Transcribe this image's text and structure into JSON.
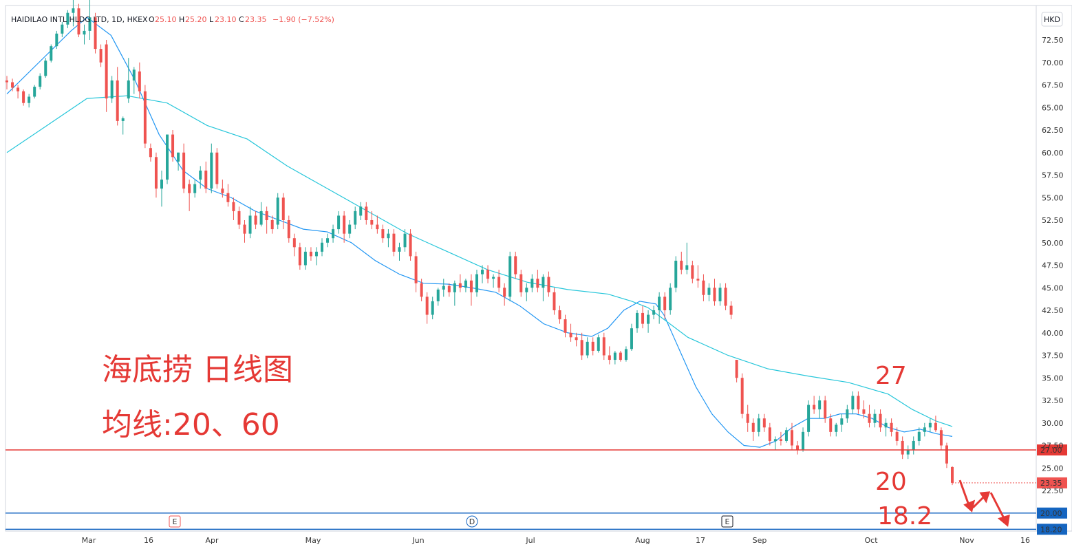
{
  "header": {
    "symbol": "HAIDILAO INTL HLDG LTD, 1D, HKEX",
    "o_label": "O",
    "o_value": "25.10",
    "h_label": "H",
    "h_value": "25.20",
    "l_label": "L",
    "l_value": "23.10",
    "c_label": "C",
    "c_value": "23.35",
    "change": "−1.90 (−7.52%)"
  },
  "currency": "HKD",
  "annotations": {
    "title": "海底捞 日线图",
    "ma_label": "均线:20、60",
    "level_27": "27",
    "level_20": "20",
    "level_18": "18.2"
  },
  "event_markers": [
    {
      "label": "E",
      "x_label": "Mar 24"
    },
    {
      "label": "D",
      "x_label": "Jun 22"
    },
    {
      "label": "E",
      "x_label": "Aug 24"
    }
  ],
  "colors": {
    "up": "#26a69a",
    "down": "#ef5350",
    "ma20": "#2196f3",
    "ma60": "#26c6da",
    "resistance": "#e53935",
    "support": "#1565c0",
    "annotation": "#e53935"
  },
  "chart_data": {
    "type": "candlestick",
    "symbol": "HAIDILAO INTL HLDG LTD",
    "timeframe": "1D",
    "exchange": "HKEX",
    "ylim": [
      17.5,
      75
    ],
    "y_ticks": [
      "72.50",
      "70.00",
      "67.50",
      "65.00",
      "62.50",
      "60.00",
      "57.50",
      "55.00",
      "52.50",
      "50.00",
      "47.50",
      "45.00",
      "42.50",
      "40.00",
      "37.50",
      "35.00",
      "32.50",
      "30.00",
      "27.50",
      "25.00",
      "22.50"
    ],
    "x_ticks": [
      "Mar",
      "16",
      "Apr",
      "May",
      "Jun",
      "Jul",
      "Aug",
      "17",
      "Sep",
      "Oct",
      "Nov",
      "16"
    ],
    "horizontal_lines": [
      {
        "value": 27.0,
        "label": "27.00",
        "color": "#e53935"
      },
      {
        "value": 20.0,
        "label": "20.00",
        "color": "#1565c0"
      },
      {
        "value": 18.2,
        "label": "18.20",
        "color": "#1565c0"
      }
    ],
    "last_price": {
      "value": 23.35,
      "label": "23.35"
    },
    "moving_averages": [
      {
        "name": "MA20",
        "period": 20,
        "color": "#2196f3",
        "points": [
          [
            0,
            66.5
          ],
          [
            8,
            70
          ],
          [
            16,
            73.5
          ],
          [
            20,
            75
          ],
          [
            26,
            73
          ],
          [
            32,
            68
          ],
          [
            38,
            62
          ],
          [
            44,
            58
          ],
          [
            50,
            56
          ],
          [
            56,
            55
          ],
          [
            62,
            53.5
          ],
          [
            68,
            52.5
          ],
          [
            74,
            51.5
          ],
          [
            80,
            51.2
          ],
          [
            86,
            50
          ],
          [
            92,
            48
          ],
          [
            98,
            46.5
          ],
          [
            104,
            45.5
          ],
          [
            110,
            45.4
          ],
          [
            116,
            45
          ],
          [
            122,
            44.5
          ],
          [
            128,
            43
          ],
          [
            134,
            41
          ],
          [
            140,
            40
          ],
          [
            146,
            39.6
          ],
          [
            150,
            40.5
          ],
          [
            154,
            42.5
          ],
          [
            158,
            43.5
          ],
          [
            162,
            43.2
          ],
          [
            164,
            42
          ],
          [
            168,
            38
          ],
          [
            172,
            34
          ],
          [
            176,
            31
          ],
          [
            180,
            29
          ],
          [
            184,
            27.5
          ],
          [
            188,
            27.3
          ],
          [
            192,
            28
          ],
          [
            196,
            29.5
          ],
          [
            200,
            30.5
          ],
          [
            204,
            30.5
          ],
          [
            208,
            31
          ],
          [
            212,
            31
          ],
          [
            216,
            30.5
          ],
          [
            220,
            29.5
          ],
          [
            224,
            29
          ],
          [
            228,
            29.3
          ],
          [
            232,
            28.8
          ],
          [
            236,
            28.5
          ]
        ]
      },
      {
        "name": "MA60",
        "period": 60,
        "color": "#26c6da",
        "points": [
          [
            0,
            60
          ],
          [
            10,
            63
          ],
          [
            20,
            66
          ],
          [
            30,
            66.3
          ],
          [
            40,
            65.5
          ],
          [
            50,
            63
          ],
          [
            60,
            61.5
          ],
          [
            70,
            58.5
          ],
          [
            80,
            56
          ],
          [
            90,
            53.5
          ],
          [
            100,
            51
          ],
          [
            110,
            49
          ],
          [
            120,
            47
          ],
          [
            130,
            45.6
          ],
          [
            140,
            44.8
          ],
          [
            150,
            44.3
          ],
          [
            156,
            43.5
          ],
          [
            160,
            42.8
          ],
          [
            164,
            41.5
          ],
          [
            170,
            39.5
          ],
          [
            180,
            37.5
          ],
          [
            190,
            36
          ],
          [
            200,
            35.2
          ],
          [
            210,
            34.5
          ],
          [
            220,
            33.2
          ],
          [
            226,
            31.5
          ],
          [
            232,
            30.2
          ],
          [
            236,
            29.6
          ]
        ]
      }
    ],
    "candles": [
      [
        0,
        68,
        68.5,
        67,
        67.8
      ],
      [
        1,
        67.8,
        68.2,
        66.8,
        67.2
      ],
      [
        2,
        67.2,
        67.5,
        66,
        66.8
      ],
      [
        3,
        66.8,
        67,
        65.2,
        65.5
      ],
      [
        4,
        65.5,
        66.5,
        65,
        66.2
      ],
      [
        5,
        66.2,
        67.5,
        66,
        67.3
      ],
      [
        6,
        67.3,
        68.8,
        67,
        68.5
      ],
      [
        7,
        68.5,
        70.5,
        68.3,
        70.2
      ],
      [
        8,
        70.2,
        72,
        70,
        71.8
      ],
      [
        9,
        71.8,
        73.5,
        71.5,
        73.2
      ],
      [
        10,
        73.2,
        74.5,
        72.8,
        74.2
      ],
      [
        11,
        74.2,
        75.8,
        73.8,
        75.5
      ],
      [
        12,
        75.5,
        77,
        74,
        76
      ],
      [
        13,
        76,
        76.5,
        72.8,
        73.1
      ],
      [
        14,
        73.1,
        74.2,
        72,
        73.5
      ],
      [
        15,
        73.5,
        77,
        72.5,
        75
      ],
      [
        16,
        75,
        75.5,
        71,
        71.5
      ],
      [
        17,
        71.5,
        72,
        69.5,
        70
      ],
      [
        18,
        72,
        72.5,
        64.5,
        66
      ],
      [
        19,
        66,
        68.5,
        65.5,
        68
      ],
      [
        20,
        68,
        69.5,
        63,
        63.5
      ],
      [
        21,
        63.5,
        64,
        62,
        63.8
      ],
      [
        22,
        66,
        70.5,
        65.5,
        68
      ],
      [
        23,
        68,
        69.5,
        66.5,
        69.2
      ],
      [
        24,
        69,
        70,
        66,
        66.8
      ],
      [
        25,
        66.8,
        67.5,
        60.5,
        61
      ],
      [
        26,
        60.5,
        61,
        59,
        59.5
      ],
      [
        27,
        59.5,
        60,
        55,
        56
      ],
      [
        28,
        56,
        58,
        54,
        57
      ],
      [
        29,
        57,
        62,
        56.5,
        62
      ],
      [
        30,
        62,
        62.5,
        59,
        59.5
      ],
      [
        31,
        59,
        60,
        58,
        60
      ],
      [
        32,
        60,
        61,
        55.5,
        56
      ],
      [
        33,
        56.5,
        57,
        53.5,
        55.5
      ],
      [
        34,
        55.5,
        57,
        55,
        56.5
      ],
      [
        35,
        57,
        58.5,
        56,
        58
      ],
      [
        36,
        58,
        59,
        55.5,
        56
      ],
      [
        37,
        56,
        61,
        55.5,
        60
      ],
      [
        38,
        60,
        60.5,
        56,
        56.5
      ],
      [
        39,
        56,
        57,
        55,
        55.5
      ]
    ],
    "candles_note": "values are [index, open, high, low, close]; full daily series continues below",
    "candles_more": [
      [
        40,
        55.5,
        56.5,
        54,
        54.5
      ],
      [
        41,
        54.5,
        55,
        52.5,
        53.5
      ],
      [
        42,
        53.5,
        54,
        51.5,
        52
      ],
      [
        43,
        52,
        52.5,
        50,
        51
      ],
      [
        44,
        51,
        54,
        50.5,
        53
      ],
      [
        45,
        53,
        53.5,
        51.5,
        52
      ],
      [
        46,
        52,
        54.5,
        51.8,
        53.5
      ],
      [
        47,
        53.5,
        54,
        51,
        52.5
      ],
      [
        48,
        52.5,
        53,
        51,
        51.5
      ],
      [
        49,
        52,
        55.5,
        51.5,
        55
      ],
      [
        50,
        55,
        55.5,
        51.5,
        52.5
      ],
      [
        51,
        52.5,
        53,
        50,
        50.5
      ],
      [
        52,
        50.5,
        51,
        48.5,
        49.5
      ],
      [
        53,
        49.5,
        50,
        47,
        47.5
      ],
      [
        54,
        47.5,
        49.5,
        47,
        49
      ],
      [
        55,
        49,
        49.5,
        48,
        48.5
      ],
      [
        56,
        48.5,
        49.5,
        47.5,
        49
      ],
      [
        57,
        49,
        50.5,
        48.5,
        50
      ],
      [
        58,
        50,
        51,
        49.5,
        50.5
      ],
      [
        59,
        50.5,
        52,
        50,
        51.5
      ],
      [
        60,
        51.5,
        53.5,
        51,
        53
      ],
      [
        61,
        53,
        53.5,
        50,
        51
      ],
      [
        62,
        51,
        52.5,
        50.5,
        52
      ],
      [
        63,
        52,
        54,
        51.5,
        53.5
      ],
      [
        64,
        53,
        54.5,
        52.5,
        54
      ],
      [
        65,
        54,
        54.5,
        52,
        52.5
      ],
      [
        66,
        52.5,
        53.5,
        51.5,
        52
      ],
      [
        67,
        52,
        53,
        51,
        51.5
      ],
      [
        68,
        51.5,
        52,
        50,
        50.5
      ],
      [
        69,
        50.5,
        51.5,
        49.5,
        51
      ],
      [
        70,
        51,
        51.5,
        48.5,
        49
      ],
      [
        71,
        49,
        50,
        48,
        49.5
      ],
      [
        72,
        49.5,
        51.5,
        49,
        51
      ],
      [
        73,
        51,
        51.5,
        48,
        48.5
      ],
      [
        74,
        48.5,
        49,
        44.5,
        45.5
      ],
      [
        75,
        45.5,
        46,
        43.5,
        44
      ],
      [
        76,
        44,
        44.5,
        41,
        42
      ],
      [
        77,
        42,
        44,
        41.5,
        43.5
      ],
      [
        78,
        43.5,
        45,
        43,
        44.8
      ],
      [
        79,
        44.8,
        46,
        44,
        45.2
      ],
      [
        80,
        45.2,
        45.5,
        44,
        44.5
      ],
      [
        81,
        44.5,
        45.8,
        43,
        45.5
      ],
      [
        82,
        45.5,
        46.5,
        44.5,
        45
      ],
      [
        83,
        45,
        46,
        44.5,
        45.8
      ],
      [
        84,
        45.8,
        46.5,
        43,
        44.5
      ],
      [
        85,
        44.5,
        47,
        44,
        46.5
      ],
      [
        86,
        46.5,
        47.5,
        45.5,
        47
      ],
      [
        87,
        47,
        47.5,
        45.5,
        46
      ],
      [
        88,
        46,
        46.5,
        45,
        46.2
      ],
      [
        89,
        46.2,
        47,
        44.5,
        45
      ]
    ],
    "candles_tail": [
      [
        90,
        45,
        45.5,
        43,
        44
      ],
      [
        91,
        44,
        49,
        43.5,
        48.5
      ],
      [
        92,
        48.5,
        49,
        46,
        46.5
      ],
      [
        93,
        46.5,
        47,
        44,
        44.5
      ],
      [
        94,
        44.5,
        45.5,
        43.5,
        45
      ],
      [
        95,
        45,
        46.5,
        44.5,
        46
      ],
      [
        96,
        46,
        47,
        44.5,
        45
      ],
      [
        97,
        45,
        46.5,
        43.5,
        46.2
      ],
      [
        98,
        46.2,
        46.8,
        44,
        44.5
      ],
      [
        99,
        44.5,
        45,
        42,
        42.5
      ],
      [
        100,
        42.5,
        43,
        41,
        41.5
      ],
      [
        101,
        41.5,
        42,
        39.5,
        40
      ],
      [
        102,
        40,
        41,
        39,
        39.5
      ],
      [
        103,
        39.5,
        40,
        38.5,
        39.2
      ],
      [
        104,
        39.2,
        40,
        37,
        37.5
      ],
      [
        105,
        37.5,
        39.5,
        37.2,
        39
      ],
      [
        106,
        39,
        39.5,
        37.5,
        38
      ],
      [
        107,
        38,
        39.8,
        37.8,
        39.5
      ],
      [
        108,
        39.5,
        40,
        37,
        37.5
      ],
      [
        109,
        37.5,
        38.5,
        36.5,
        37
      ],
      [
        110,
        37,
        38,
        36.5,
        37.8
      ],
      [
        111,
        37.8,
        38,
        36.8,
        37
      ],
      [
        112,
        37,
        38.5,
        36.8,
        38.2
      ],
      [
        113,
        38.2,
        41,
        38,
        40.5
      ],
      [
        114,
        40.5,
        42.5,
        40,
        42.2
      ],
      [
        115,
        42.2,
        43,
        40.5,
        41
      ],
      [
        116,
        41,
        42.5,
        40,
        42
      ],
      [
        117,
        42,
        43,
        41.5,
        42.5
      ],
      [
        118,
        42.5,
        44.5,
        41,
        44
      ],
      [
        119,
        44,
        44.5,
        41.5,
        42.5
      ],
      [
        120,
        42.5,
        45.5,
        42,
        45
      ],
      [
        121,
        45,
        48.5,
        44.5,
        48
      ],
      [
        122,
        48,
        49,
        46.5,
        47
      ],
      [
        123,
        47,
        50,
        46.5,
        47.5
      ],
      [
        124,
        47.5,
        48,
        45.5,
        46
      ],
      [
        125,
        46,
        47.5,
        45,
        45.8
      ],
      [
        126,
        45.8,
        46.5,
        43.5,
        44.2
      ],
      [
        127,
        44.2,
        45.5,
        43.5,
        45
      ],
      [
        128,
        45,
        46,
        43,
        43.5
      ],
      [
        129,
        43.5,
        45.5,
        43,
        45
      ]
    ],
    "candles_last": [
      [
        130,
        45,
        45.5,
        42.5,
        43
      ],
      [
        131,
        43,
        43.5,
        41.5,
        42
      ],
      [
        132,
        37,
        37,
        34.5,
        35
      ],
      [
        133,
        35,
        35.5,
        30.5,
        31
      ],
      [
        134,
        31,
        32,
        29,
        30
      ],
      [
        135,
        30,
        30.5,
        28,
        29
      ],
      [
        136,
        29,
        31,
        28.5,
        30.5
      ],
      [
        137,
        30.5,
        31,
        29,
        29.5
      ],
      [
        138,
        29.5,
        30,
        27.5,
        28
      ],
      [
        139,
        28,
        28.5,
        27,
        28.2
      ],
      [
        140,
        28.2,
        29,
        27.5,
        28
      ],
      [
        141,
        28,
        29.5,
        27.8,
        29.2
      ],
      [
        142,
        29.2,
        30,
        27,
        27.5
      ],
      [
        143,
        27.5,
        28,
        26.5,
        27
      ],
      [
        144,
        27,
        29.5,
        26.8,
        29
      ],
      [
        145,
        29,
        32.5,
        28.5,
        32
      ],
      [
        146,
        32,
        33,
        31,
        31.5
      ],
      [
        147,
        31.5,
        33,
        30.5,
        32.5
      ],
      [
        148,
        32.5,
        33,
        30,
        30.5
      ],
      [
        149,
        30.5,
        31,
        28.5,
        29
      ]
    ]
  }
}
